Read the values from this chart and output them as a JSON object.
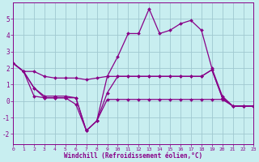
{
  "xlabel": "Windchill (Refroidissement éolien,°C)",
  "bg_color": "#c8eef0",
  "grid_color": "#a0c8d0",
  "line_color": "#880088",
  "marker": "D",
  "markersize": 2.0,
  "linewidth": 0.9,
  "xlim": [
    0,
    23
  ],
  "ylim": [
    -2.6,
    6.0
  ],
  "yticks": [
    -2,
    -1,
    0,
    1,
    2,
    3,
    4,
    5
  ],
  "xticks": [
    0,
    1,
    2,
    3,
    4,
    5,
    6,
    7,
    8,
    9,
    10,
    11,
    12,
    13,
    14,
    15,
    16,
    17,
    18,
    19,
    20,
    21,
    22,
    23
  ],
  "series": [
    [
      2.3,
      1.8,
      1.8,
      1.5,
      1.4,
      1.4,
      1.4,
      1.3,
      1.4,
      1.5,
      1.5,
      1.5,
      1.5,
      1.5,
      1.5,
      1.5,
      1.5,
      1.5,
      1.5,
      1.9,
      0.2,
      -0.3,
      -0.3,
      -0.3
    ],
    [
      2.3,
      1.8,
      0.3,
      0.2,
      0.2,
      0.2,
      -0.2,
      -1.8,
      -1.2,
      1.5,
      2.7,
      4.1,
      4.1,
      5.6,
      4.1,
      4.3,
      4.7,
      4.9,
      4.3,
      2.0,
      0.3,
      -0.3,
      -0.3,
      -0.3
    ],
    [
      2.3,
      1.8,
      0.8,
      0.2,
      0.2,
      0.2,
      0.2,
      -1.8,
      -1.2,
      0.1,
      0.1,
      0.1,
      0.1,
      0.1,
      0.1,
      0.1,
      0.1,
      0.1,
      0.1,
      0.1,
      0.1,
      -0.3,
      -0.3,
      -0.3
    ],
    [
      2.3,
      1.8,
      0.8,
      0.3,
      0.3,
      0.3,
      0.2,
      -1.8,
      -1.2,
      0.5,
      1.5,
      1.5,
      1.5,
      1.5,
      1.5,
      1.5,
      1.5,
      1.5,
      1.5,
      1.9,
      0.2,
      -0.3,
      -0.3,
      -0.3
    ]
  ]
}
